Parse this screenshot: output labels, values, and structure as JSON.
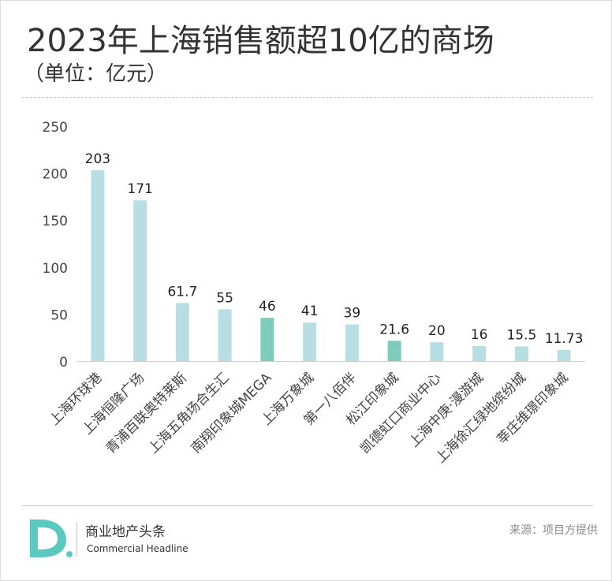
{
  "title": "2023年上海销售额超10亿的商场",
  "subtitle": "（单位：亿元）",
  "chart_data": {
    "type": "bar",
    "categories": [
      "上海环球港",
      "上海恒隆广场",
      "青浦百联奥特莱斯",
      "上海五角场合生汇",
      "南翔印象城MEGA",
      "上海万象城",
      "第一八佰伴",
      "松江印象城",
      "凯德虹口商业中心",
      "上海中庚·漫游城",
      "上海徐汇绿地缤纷城",
      "莘庄维璟印象城"
    ],
    "values": [
      203,
      171,
      61.7,
      55,
      46,
      41,
      39,
      21.6,
      20,
      16,
      15.5,
      11.73
    ],
    "value_labels": [
      "203",
      "171",
      "61.7",
      "55",
      "46",
      "41",
      "39",
      "21.6",
      "20",
      "16",
      "15.5",
      "11.73"
    ],
    "yticks": [
      "0",
      "50",
      "100",
      "150",
      "200",
      "250"
    ],
    "ylim": [
      0,
      250
    ],
    "grid": false,
    "colors": {
      "default": "#b7dfe3",
      "highlight": "#7fcbbd",
      "axis": "#cfcfcf",
      "tick_text": "#444444"
    },
    "highlight_categories": [
      "南翔印象城MEGA",
      "松江印象城"
    ]
  },
  "footer": {
    "logo_letter": "D.",
    "brand_cn": "商业地产头条",
    "brand_en": "Commercial Headline",
    "source": "来源：项目方提供"
  }
}
